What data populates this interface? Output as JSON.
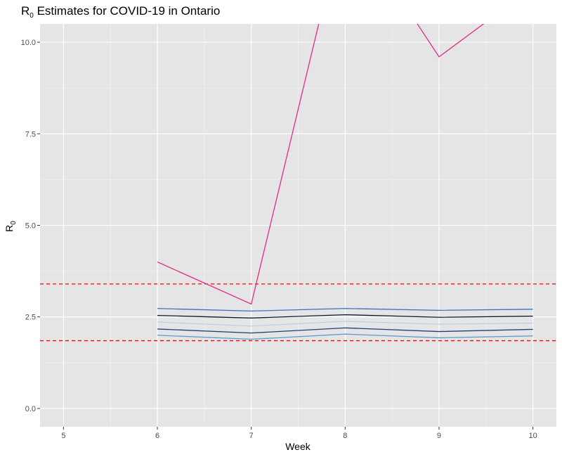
{
  "chart_data": {
    "type": "line",
    "title": "R",
    "title_subscript": "0",
    "title_rest": " Estimates for COVID-19 in Ontario",
    "xlabel": "Week",
    "ylabel": "R",
    "ylabel_subscript": "0",
    "xlim": [
      4.75,
      10.25
    ],
    "ylim": [
      -0.5,
      10.5
    ],
    "x_ticks": [
      5,
      6,
      7,
      8,
      9,
      10
    ],
    "x_tick_labels": [
      "5",
      "6",
      "7",
      "8",
      "9",
      "10"
    ],
    "y_ticks": [
      0.0,
      2.5,
      5.0,
      7.5,
      10.0
    ],
    "y_tick_labels": [
      "0.0",
      "2.5",
      "5.0",
      "7.5",
      "10.0"
    ],
    "grid": true,
    "background": "#e5e5e5",
    "reference_lines": [
      {
        "y": 3.4,
        "color": "#ff0000",
        "style": "dashed"
      },
      {
        "y": 1.85,
        "color": "#ff0000",
        "style": "dashed"
      }
    ],
    "series": [
      {
        "x": [
          6,
          7,
          8,
          9,
          10
        ],
        "values": [
          4.0,
          2.85,
          13.5,
          9.6,
          11.5
        ],
        "color": "#e7298a"
      },
      {
        "x": [
          6,
          7,
          8,
          9,
          10
        ],
        "values": [
          2.73,
          2.66,
          2.73,
          2.68,
          2.71
        ],
        "color": "#3a73b8"
      },
      {
        "x": [
          6,
          7,
          8,
          9,
          10
        ],
        "values": [
          2.54,
          2.47,
          2.56,
          2.49,
          2.52
        ],
        "color": "#0b1a33"
      },
      {
        "x": [
          6,
          7,
          8,
          9,
          10
        ],
        "values": [
          2.36,
          2.25,
          2.38,
          2.3,
          2.33
        ],
        "color": "#b8d0e6"
      },
      {
        "x": [
          6,
          7,
          8,
          9,
          10
        ],
        "values": [
          2.17,
          2.06,
          2.2,
          2.1,
          2.16
        ],
        "color": "#1f3f7a"
      },
      {
        "x": [
          6,
          7,
          8,
          9,
          10
        ],
        "values": [
          2.0,
          1.89,
          2.03,
          1.93,
          1.98
        ],
        "color": "#5b9bd0"
      }
    ]
  }
}
